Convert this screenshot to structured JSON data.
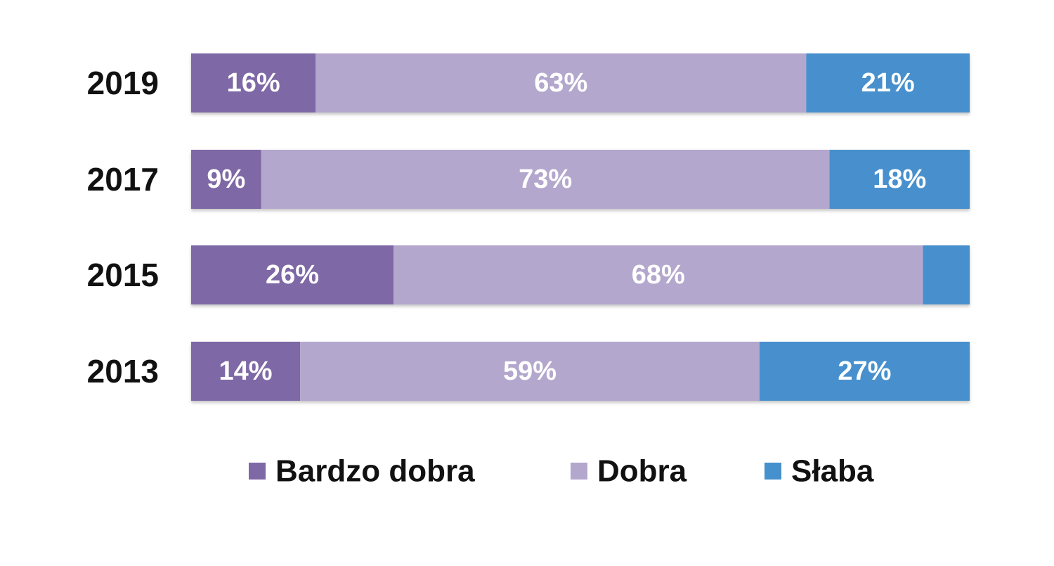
{
  "chart_data": {
    "type": "bar",
    "orientation": "horizontal",
    "stacked": true,
    "percent_stacked": true,
    "categories": [
      "2019",
      "2017",
      "2015",
      "2013"
    ],
    "series": [
      {
        "name": "Bardzo dobra",
        "color": "#7e68a5",
        "values": [
          16,
          9,
          26,
          14
        ],
        "labels": [
          "16%",
          "9%",
          "26%",
          "14%"
        ]
      },
      {
        "name": "Dobra",
        "color": "#b3a7cd",
        "values": [
          63,
          73,
          68,
          59
        ],
        "labels": [
          "63%",
          "73%",
          "68%",
          "59%"
        ]
      },
      {
        "name": "Słaba",
        "color": "#4690cd",
        "values": [
          21,
          18,
          6,
          27
        ],
        "labels": [
          "21%",
          "18%",
          "",
          "27%"
        ]
      }
    ],
    "xlim": [
      0,
      100
    ],
    "grid": false,
    "legend_position": "bottom",
    "title": "",
    "xlabel": "",
    "ylabel": ""
  }
}
